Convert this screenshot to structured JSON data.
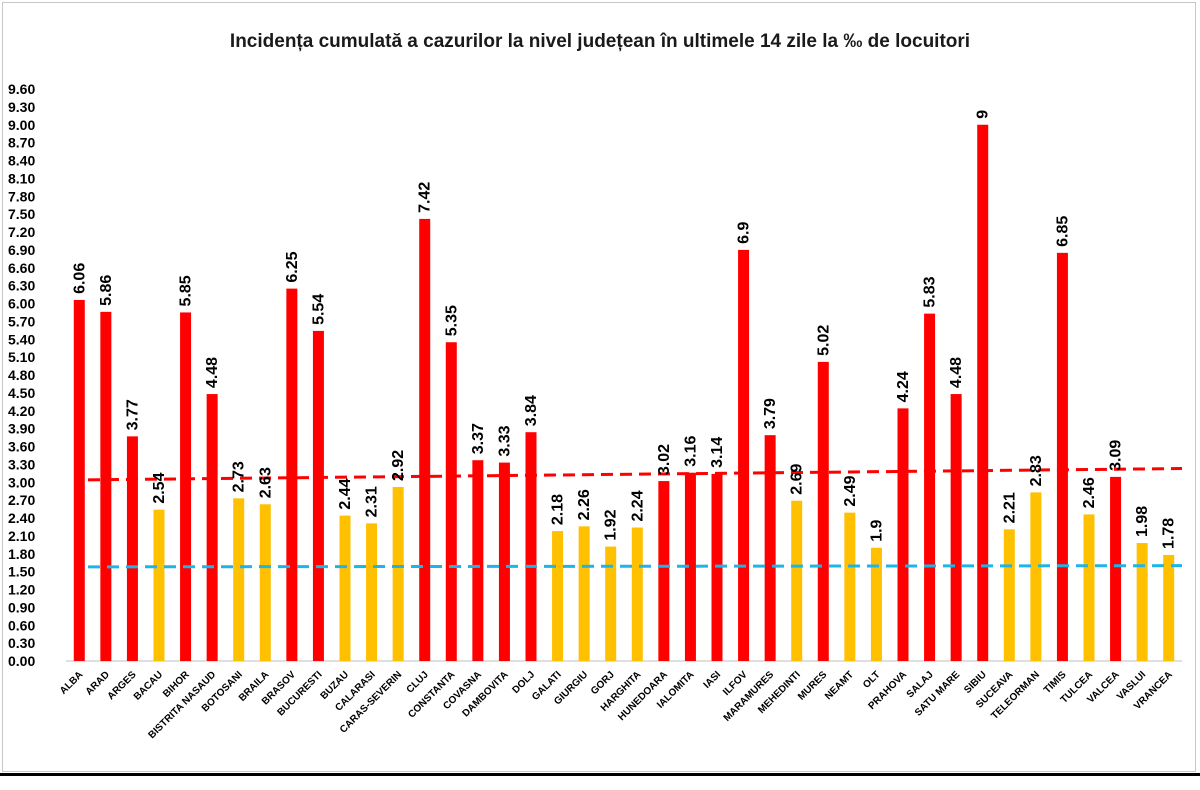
{
  "chart_data": {
    "type": "bar",
    "title": "Incidența cumulată a cazurilor la nivel județean în ultimele 14 zile la ‰ de locuitori",
    "xlabel": "",
    "ylabel": "",
    "ylim": [
      0,
      9.6
    ],
    "y_ticks": [
      "0.00",
      "0.30",
      "0.60",
      "0.90",
      "1.20",
      "1.50",
      "1.80",
      "2.10",
      "2.40",
      "2.70",
      "3.00",
      "3.30",
      "3.60",
      "3.90",
      "4.20",
      "4.50",
      "4.80",
      "5.10",
      "5.40",
      "5.70",
      "6.00",
      "6.30",
      "6.60",
      "6.90",
      "7.20",
      "7.50",
      "7.80",
      "8.10",
      "8.40",
      "8.70",
      "9.00",
      "9.30",
      "9.60"
    ],
    "grid": false,
    "legend": "none",
    "categories": [
      "ALBA",
      "ARAD",
      "ARGES",
      "BACAU",
      "BIHOR",
      "BISTRITA NASAUD",
      "BOTOSANI",
      "BRAILA",
      "BRASOV",
      "BUCURESTI",
      "BUZAU",
      "CALARASI",
      "CARAS-SEVERIN",
      "CLUJ",
      "CONSTANTA",
      "COVASNA",
      "DAMBOVITA",
      "DOLJ",
      "GALATI",
      "GIURGIU",
      "GORJ",
      "HARGHITA",
      "HUNEDOARA",
      "IALOMITA",
      "IASI",
      "ILFOV",
      "MARAMURES",
      "MEHEDINTI",
      "MURES",
      "NEAMT",
      "OLT",
      "PRAHOVA",
      "SALAJ",
      "SATU MARE",
      "SIBIU",
      "SUCEAVA",
      "TELEORMAN",
      "TIMIS",
      "TULCEA",
      "VALCEA",
      "VASLUI",
      "VRANCEA"
    ],
    "values": [
      6.06,
      5.86,
      3.77,
      2.54,
      5.85,
      4.48,
      2.73,
      2.63,
      6.25,
      5.54,
      2.44,
      2.31,
      2.92,
      7.42,
      5.35,
      3.37,
      3.33,
      3.84,
      2.18,
      2.26,
      1.92,
      2.24,
      3.02,
      3.16,
      3.14,
      6.9,
      3.79,
      2.69,
      5.02,
      2.49,
      1.9,
      4.24,
      5.83,
      4.48,
      9,
      2.21,
      2.83,
      6.85,
      2.46,
      3.09,
      1.98,
      1.78
    ],
    "value_labels": [
      "6.06",
      "5.86",
      "3.77",
      "2.54",
      "5.85",
      "4.48",
      "2.73",
      "2.63",
      "6.25",
      "5.54",
      "2.44",
      "2.31",
      "2.92",
      "7.42",
      "5.35",
      "3.37",
      "3.33",
      "3.84",
      "2.18",
      "2.26",
      "1.92",
      "2.24",
      "3.02",
      "3.16",
      "3.14",
      "6.9",
      "3.79",
      "2.69",
      "5.02",
      "2.49",
      "1.9",
      "4.24",
      "5.83",
      "4.48",
      "9",
      "2.21",
      "2.83",
      "6.85",
      "2.46",
      "3.09",
      "1.98",
      "1.78"
    ],
    "threshold_value": 3.0,
    "colors": {
      "above": "#ff0000",
      "below": "#ffc000"
    },
    "reference_lines": [
      {
        "style": "dashed",
        "color": "#ff0000",
        "start": 3.04,
        "end": 3.23
      },
      {
        "style": "dashed",
        "color": "#1fb4e8",
        "start": 1.58,
        "end": 1.6
      }
    ]
  }
}
